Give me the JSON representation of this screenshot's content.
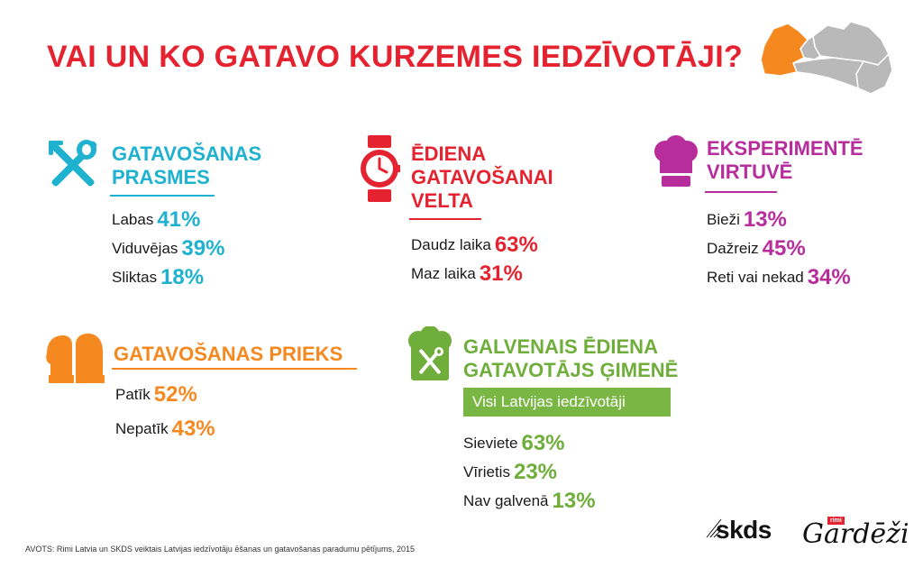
{
  "title": "VAI UN KO GATAVO KURZEMES IEDZĪVOTĀJI?",
  "colors": {
    "title": "#e52330",
    "teal": "#1eb2d0",
    "red": "#e52330",
    "purple": "#b82d9c",
    "orange": "#f5891f",
    "green": "#6fae3b",
    "map_highlight": "#f5891f",
    "map_other": "#b9b9b9"
  },
  "sections": {
    "skills": {
      "icon": "fork-whisk-icon",
      "title_lines": [
        "GATAVOŠANAS",
        "PRASMES"
      ],
      "rows": [
        {
          "label": "Labas",
          "value": "41%"
        },
        {
          "label": "Viduvējas",
          "value": "39%"
        },
        {
          "label": "Sliktas",
          "value": "18%"
        }
      ]
    },
    "time": {
      "icon": "watch-icon",
      "title_lines": [
        "ĒDIENA",
        "GATAVOŠANAI",
        "VELTA"
      ],
      "rows": [
        {
          "label": "Daudz laika",
          "value": "63%"
        },
        {
          "label": "Maz laika",
          "value": "31%"
        }
      ]
    },
    "experiment": {
      "icon": "chef-hat-icon",
      "title_lines": [
        "EKSPERIMENTĒ",
        "VIRTUVĒ"
      ],
      "rows": [
        {
          "label": "Bieži",
          "value": "13%"
        },
        {
          "label": "Dažreiz",
          "value": "45%"
        },
        {
          "label": "Reti vai nekad",
          "value": "34%"
        }
      ]
    },
    "joy": {
      "icon": "oven-mitt-icon",
      "title_lines": [
        "GATAVOŠANAS PRIEKS"
      ],
      "rows": [
        {
          "label": "Patīk",
          "value": "52%"
        },
        {
          "label": "Nepatīk",
          "value": "43%"
        }
      ]
    },
    "main_cook": {
      "icon": "chef-hat-utensils-icon",
      "title_lines": [
        "GALVENAIS ĒDIENA",
        "GATAVOTĀJS ĢIMENĒ"
      ],
      "badge": "Visi Latvijas iedzīvotāji",
      "rows": [
        {
          "label": "Sieviete",
          "value": "63%"
        },
        {
          "label": "Vīrietis",
          "value": "23%"
        },
        {
          "label": "Nav galvenā",
          "value": "13%"
        }
      ]
    }
  },
  "source": "AVOTS: Rimi Latvia un SKDS veiktais Latvijas iedzīvotāju ēšanas un gatavošanas paradumu pētījums, 2015",
  "logos": {
    "skds": "skds",
    "gardezi": "Gardēži",
    "rimi": "rimi"
  }
}
